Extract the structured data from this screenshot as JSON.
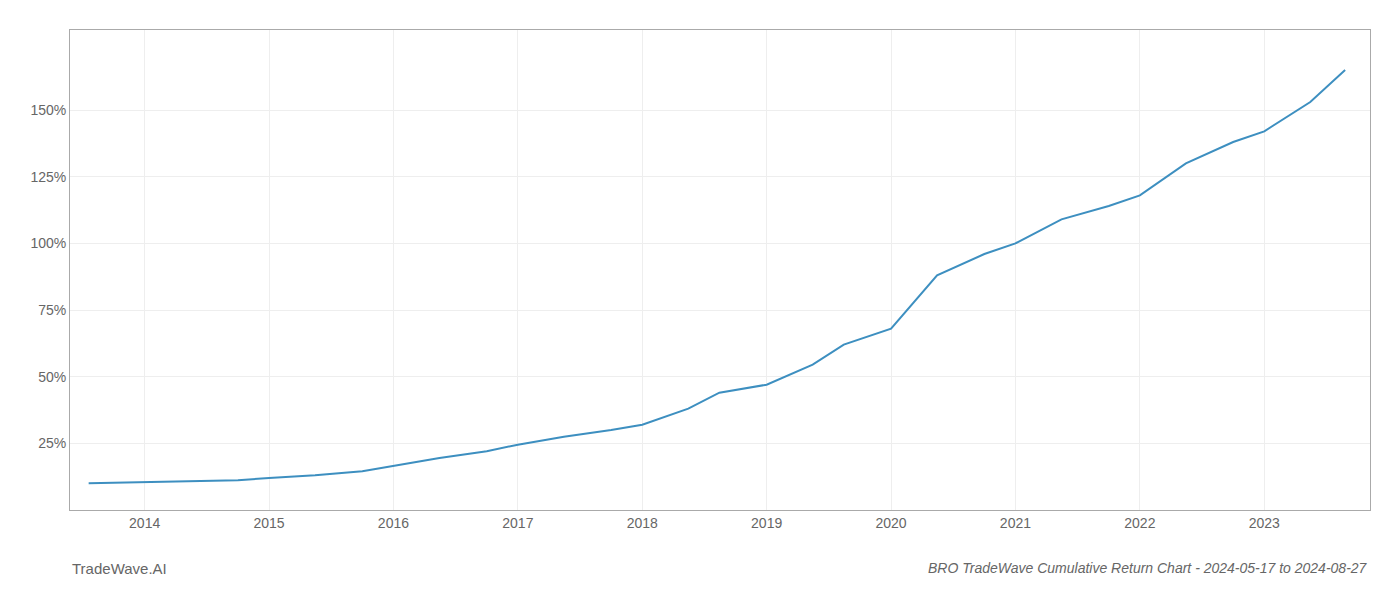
{
  "chart_data": {
    "type": "line",
    "title": "BRO TradeWave Cumulative Return Chart - 2024-05-17 to 2024-08-27",
    "annotations": [
      "TradeWave.AI"
    ],
    "x": [
      2013.55,
      2014.0,
      2014.37,
      2014.75,
      2015.0,
      2015.37,
      2015.75,
      2016.0,
      2016.37,
      2016.75,
      2017.0,
      2017.37,
      2017.75,
      2018.0,
      2018.37,
      2018.62,
      2018.87,
      2019.0,
      2019.37,
      2019.62,
      2020.0,
      2020.37,
      2020.75,
      2021.0,
      2021.37,
      2021.75,
      2022.0,
      2022.37,
      2022.75,
      2023.0,
      2023.37,
      2023.65
    ],
    "values": [
      0.1,
      0.105,
      0.108,
      0.112,
      0.12,
      0.13,
      0.145,
      0.165,
      0.195,
      0.22,
      0.245,
      0.275,
      0.3,
      0.32,
      0.38,
      0.44,
      0.46,
      0.47,
      0.545,
      0.62,
      0.68,
      0.88,
      0.96,
      1.0,
      1.09,
      1.14,
      1.18,
      1.3,
      1.38,
      1.42,
      1.53,
      1.65
    ],
    "color": "#3d8fc0",
    "xlim": [
      2013.4,
      2023.85
    ],
    "ylim": [
      0.0,
      1.8
    ],
    "xticks": [
      2014,
      2015,
      2016,
      2017,
      2018,
      2019,
      2020,
      2021,
      2022,
      2023
    ],
    "yticks": [
      {
        "value": 0.25,
        "label": "25%"
      },
      {
        "value": 0.5,
        "label": "50%"
      },
      {
        "value": 0.75,
        "label": "75%"
      },
      {
        "value": 1.0,
        "label": "100%"
      },
      {
        "value": 1.25,
        "label": "125%"
      },
      {
        "value": 1.5,
        "label": "150%"
      }
    ],
    "grid": true
  }
}
